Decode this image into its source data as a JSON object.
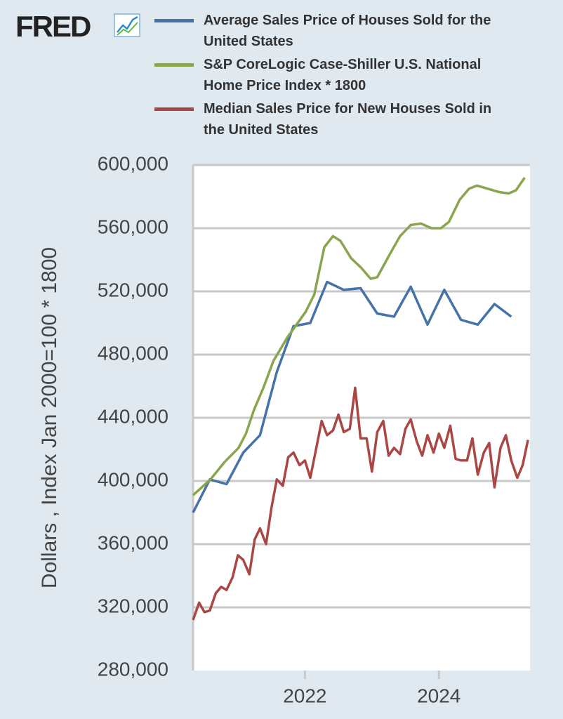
{
  "chart_data": {
    "type": "line",
    "logo": "FRED",
    "ylabel": "Dollars , Index Jan 2000=100 * 1800",
    "xlim": [
      2020.33,
      2025.36
    ],
    "xticks": [
      2022,
      2024
    ],
    "ylim": [
      280000,
      600000
    ],
    "yticks": [
      {
        "value": 280000,
        "label": "280,000"
      },
      {
        "value": 320000,
        "label": "320,000"
      },
      {
        "value": 360000,
        "label": "360,000"
      },
      {
        "value": 400000,
        "label": "400,000"
      },
      {
        "value": 440000,
        "label": "440,000"
      },
      {
        "value": 480000,
        "label": "480,000"
      },
      {
        "value": 520000,
        "label": "520,000"
      },
      {
        "value": 560000,
        "label": "560,000"
      },
      {
        "value": 600000,
        "label": "600,000"
      }
    ],
    "grid": true,
    "series": [
      {
        "name": "Average Sales Price of Houses Sold for the United States",
        "color": "#4572a7",
        "x": [
          2020.33,
          2020.58,
          2020.83,
          2021.08,
          2021.33,
          2021.58,
          2021.83,
          2022.08,
          2022.33,
          2022.58,
          2022.83,
          2023.08,
          2023.33,
          2023.58,
          2023.83,
          2024.08,
          2024.33,
          2024.58,
          2024.83,
          2025.08
        ],
        "values": [
          380000,
          401000,
          398000,
          418000,
          429000,
          469000,
          498000,
          500000,
          526000,
          521000,
          522000,
          506000,
          504000,
          523000,
          499000,
          521000,
          502000,
          499000,
          512000,
          504000
        ]
      },
      {
        "name": "S&P CoreLogic Case-Shiller U.S. National Home Price Index * 1800",
        "color": "#89a54e",
        "x": [
          2020.33,
          2020.59,
          2020.8,
          2021.01,
          2021.12,
          2021.24,
          2021.38,
          2021.53,
          2021.74,
          2022.01,
          2022.14,
          2022.29,
          2022.42,
          2022.53,
          2022.69,
          2022.84,
          2022.98,
          2023.08,
          2023.26,
          2023.42,
          2023.58,
          2023.73,
          2023.89,
          2024.03,
          2024.15,
          2024.31,
          2024.45,
          2024.57,
          2024.73,
          2024.89,
          2025.04,
          2025.15,
          2025.28
        ],
        "values": [
          391000,
          401000,
          412000,
          421000,
          430000,
          445000,
          459000,
          476000,
          491000,
          507000,
          518000,
          548000,
          555000,
          552000,
          541000,
          535000,
          528000,
          529000,
          543000,
          555000,
          562000,
          563000,
          560000,
          560000,
          564000,
          578000,
          585000,
          587000,
          585000,
          583000,
          582000,
          584000,
          592000
        ]
      },
      {
        "name": "Median Sales Price for New Houses Sold in the United States",
        "color": "#aa4643",
        "x": [
          2020.33,
          2020.42,
          2020.5,
          2020.58,
          2020.67,
          2020.75,
          2020.83,
          2020.92,
          2021.0,
          2021.08,
          2021.17,
          2021.25,
          2021.33,
          2021.42,
          2021.5,
          2021.58,
          2021.67,
          2021.75,
          2021.83,
          2021.92,
          2022.0,
          2022.08,
          2022.17,
          2022.25,
          2022.33,
          2022.42,
          2022.5,
          2022.58,
          2022.67,
          2022.75,
          2022.83,
          2022.92,
          2023.0,
          2023.08,
          2023.17,
          2023.25,
          2023.33,
          2023.42,
          2023.5,
          2023.58,
          2023.67,
          2023.75,
          2023.83,
          2023.92,
          2024.0,
          2024.08,
          2024.17,
          2024.25,
          2024.33,
          2024.42,
          2024.5,
          2024.58,
          2024.67,
          2024.75,
          2024.83,
          2024.92,
          2025.0,
          2025.08,
          2025.17,
          2025.25,
          2025.33
        ],
        "values": [
          312000,
          323000,
          317000,
          318000,
          329000,
          333000,
          331000,
          339000,
          353000,
          350000,
          341000,
          363000,
          370000,
          360000,
          383000,
          401000,
          397000,
          415000,
          418000,
          410000,
          413000,
          402000,
          421000,
          438000,
          429000,
          432000,
          442000,
          431000,
          433000,
          459000,
          427000,
          427000,
          406000,
          431000,
          438000,
          416000,
          421000,
          417000,
          433000,
          439000,
          425000,
          416000,
          429000,
          418000,
          430000,
          421000,
          435000,
          414000,
          413000,
          413000,
          427000,
          404000,
          418000,
          424000,
          396000,
          421000,
          429000,
          413000,
          402000,
          410000,
          426000
        ]
      }
    ]
  }
}
